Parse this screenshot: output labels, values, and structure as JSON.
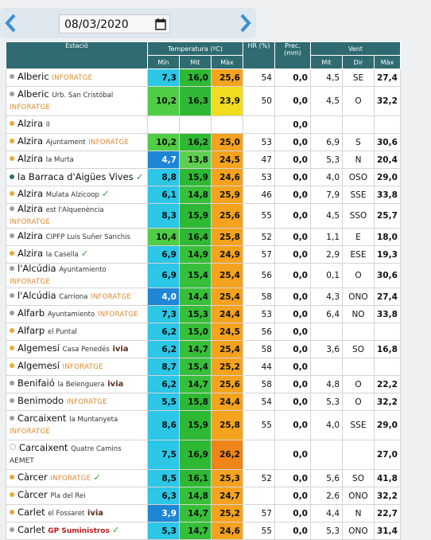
{
  "date": "08/03/2020",
  "table": {
    "header": {
      "station": "Estació",
      "temperature": "Temperatura (ºC)",
      "hr": "HR (%)",
      "prec": "Prec. (mm)",
      "wind": "Vent"
    },
    "subheader": [
      "Mín",
      "Mit",
      "Màx",
      "Mit",
      "Dir",
      "Màx"
    ],
    "rows": [
      {
        "name": "Alberic",
        "source": "INFORATGE",
        "min": "7,3",
        "mit": "16,0",
        "max": "25,6",
        "hr": "54",
        "prec": "0,0",
        "wind": "4,5",
        "dir": "SE",
        "gust": "27,4"
      },
      {
        "name": "Alberic",
        "detail": "Urb. San Cristóbal",
        "source": "INFORATGE",
        "min": "10,2",
        "mit": "16,3",
        "max": "23,9",
        "hr": "50",
        "prec": "0,0",
        "wind": "4,5",
        "dir": "O",
        "gust": "32,2"
      },
      {
        "name": "Alzira",
        "detail": "II",
        "min": null,
        "mit": null,
        "max": null,
        "hr": null,
        "prec": "0,0",
        "wind": null,
        "dir": null,
        "gust": null
      },
      {
        "name": "Alzira",
        "detail": "Ajuntament",
        "source": "INFORATGE",
        "min": "10,2",
        "mit": "16,2",
        "max": "25,0",
        "hr": "53",
        "prec": "0,0",
        "wind": "6,9",
        "dir": "S",
        "gust": "30,6"
      },
      {
        "name": "Alzira",
        "detail": "la Murta",
        "min": "4,7",
        "mit": "13,8",
        "max": "24,5",
        "hr": "47",
        "prec": "0,0",
        "wind": "5,3",
        "dir": "N",
        "gust": "20,4"
      },
      {
        "name": "la Barraca d'Aigües Vives",
        "verified": true,
        "min": "8,8",
        "mit": "15,9",
        "max": "24,6",
        "hr": "53",
        "prec": "0,0",
        "wind": "4,0",
        "dir": "OSO",
        "gust": "29,0"
      },
      {
        "name": "Alzira",
        "detail": "Mulata Alzicoop",
        "verified": true,
        "min": "6,1",
        "mit": "14,8",
        "max": "25,9",
        "hr": "46",
        "prec": "0,0",
        "wind": "7,9",
        "dir": "SSE",
        "gust": "33,8"
      },
      {
        "name": "Alzira",
        "detail": "est l'Alquenència",
        "source": "INFORATGE",
        "min": "8,3",
        "mit": "15,9",
        "max": "25,6",
        "hr": "55",
        "prec": "0,0",
        "wind": "4,5",
        "dir": "SSO",
        "gust": "25,7"
      },
      {
        "name": "Alzira",
        "detail": "CIPFP Luis Suñer Sanchis",
        "min": "10,4",
        "mit": "16,4",
        "max": "25,8",
        "hr": "52",
        "prec": "0,0",
        "wind": "1,1",
        "dir": "E",
        "gust": "18,0"
      },
      {
        "name": "Alzira",
        "detail": "la Casella",
        "verified": true,
        "min": "6,9",
        "mit": "14,9",
        "max": "24,9",
        "hr": "57",
        "prec": "0,0",
        "wind": "2,9",
        "dir": "ESE",
        "gust": "19,3"
      },
      {
        "name": "l'Alcúdia",
        "detail": "Ayuntamiento",
        "source": "INFORATGE",
        "min": "6,9",
        "mit": "15,4",
        "max": "25,4",
        "hr": "56",
        "prec": "0,0",
        "wind": "0,1",
        "dir": "O",
        "gust": "30,6"
      },
      {
        "name": "l'Alcúdia",
        "detail": "Carriona",
        "source": "INFORATGE",
        "min": "4,0",
        "mit": "14,4",
        "max": "25,4",
        "hr": "58",
        "prec": "0,0",
        "wind": "4,3",
        "dir": "ONO",
        "gust": "27,4"
      },
      {
        "name": "Alfarb",
        "detail": "Ayuntamiento",
        "source": "INFORATGE",
        "min": "7,3",
        "mit": "15,3",
        "max": "24,4",
        "hr": "53",
        "prec": "0,0",
        "wind": "6,4",
        "dir": "NO",
        "gust": "33,8"
      },
      {
        "name": "Alfarp",
        "detail": "el Puntal",
        "min": "6,2",
        "mit": "15,0",
        "max": "24,5",
        "hr": "56",
        "prec": "0,0",
        "wind": null,
        "dir": null,
        "gust": null
      },
      {
        "name": "Algemesí",
        "detail": "Casa Penedés",
        "source": "ivia",
        "min": "6,2",
        "mit": "14,7",
        "max": "25,4",
        "hr": "58",
        "prec": "0,0",
        "wind": "3,6",
        "dir": "SO",
        "gust": "16,8"
      },
      {
        "name": "Algemesí",
        "source": "INFORATGE",
        "min": "8,7",
        "mit": "15,4",
        "max": "25,2",
        "hr": "44",
        "prec": "0,0",
        "wind": null,
        "dir": null,
        "gust": null
      },
      {
        "name": "Benifaió",
        "detail": "la Belenguera",
        "source": "ivia",
        "min": "6,2",
        "mit": "14,7",
        "max": "25,6",
        "hr": "58",
        "prec": "0,0",
        "wind": "4,8",
        "dir": "O",
        "gust": "22,2"
      },
      {
        "name": "Benimodo",
        "source": "INFORATGE",
        "min": "5,5",
        "mit": "15,8",
        "max": "24,4",
        "hr": "54",
        "prec": "0,0",
        "wind": "5,3",
        "dir": "O",
        "gust": "32,2"
      },
      {
        "name": "Carcaixent",
        "detail": "la Muntanyeta",
        "source": "INFORATGE",
        "min": "8,6",
        "mit": "15,9",
        "max": "25,8",
        "hr": "55",
        "prec": "0,0",
        "wind": "4,0",
        "dir": "SSE",
        "gust": "29,0"
      },
      {
        "name": "Carcaixent",
        "detail": "Quatre Camins",
        "source": "AEMET",
        "min": "7,5",
        "mit": "16,9",
        "max": "26,2",
        "hr": null,
        "prec": "0,0",
        "wind": null,
        "dir": null,
        "gust": "27,0"
      },
      {
        "name": "Càrcer",
        "source": "INFORATGE",
        "verified": true,
        "min": "8,5",
        "mit": "16,1",
        "max": "25,3",
        "hr": "52",
        "prec": "0,0",
        "wind": "5,6",
        "dir": "SO",
        "gust": "41,8"
      },
      {
        "name": "Càrcer",
        "detail": "Pla del Rei",
        "min": "6,3",
        "mit": "14,8",
        "max": "24,7",
        "hr": null,
        "prec": "0,0",
        "wind": "2,6",
        "dir": "ONO",
        "gust": "32,2"
      },
      {
        "name": "Carlet",
        "detail": "el Fossaret",
        "source": "ivia",
        "min": "3,9",
        "mit": "14,7",
        "max": "25,2",
        "hr": "57",
        "prec": "0,0",
        "wind": "4,4",
        "dir": "N",
        "gust": "22,7"
      },
      {
        "name": "Carlet",
        "source": "GP Suministros",
        "verified": true,
        "min": "5,3",
        "mit": "14,7",
        "max": "24,6",
        "hr": "55",
        "prec": "0,0",
        "wind": "5,3",
        "dir": "ONO",
        "gust": "31,4"
      }
    ]
  }
}
